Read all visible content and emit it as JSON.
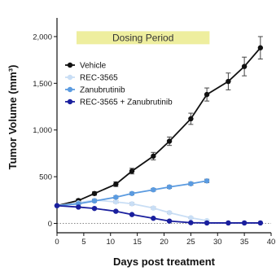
{
  "chart_data": {
    "type": "line",
    "xlabel": "Days post treatment",
    "ylabel": "Tumor Volume (mm³)",
    "xlim": [
      0,
      40
    ],
    "ylim": [
      -100,
      2200
    ],
    "x_ticks": [
      0,
      5,
      10,
      15,
      20,
      25,
      30,
      35,
      40
    ],
    "y_ticks": [
      0,
      500,
      1000,
      1500,
      2000
    ],
    "y_tick_labels": [
      "0",
      "500",
      "1,000",
      "1,500",
      "2,000"
    ],
    "annotation": "Dosing Period",
    "dosing_period": [
      0,
      28.5
    ],
    "baseline_dotted_at": 0,
    "legend_position": "top-left",
    "series": [
      {
        "name": "Vehicle",
        "color": "#111111",
        "x": [
          0,
          4,
          7,
          11,
          14,
          18,
          21,
          25,
          28,
          32,
          35,
          38
        ],
        "y": [
          190,
          245,
          320,
          420,
          560,
          720,
          880,
          1120,
          1380,
          1520,
          1680,
          1880
        ],
        "err": [
          0,
          15,
          18,
          25,
          30,
          40,
          45,
          60,
          70,
          90,
          100,
          120
        ]
      },
      {
        "name": "REC-3565",
        "color": "#c9def5",
        "x": [
          0,
          4,
          7,
          11,
          14,
          18,
          21,
          25,
          28
        ],
        "y": [
          190,
          220,
          250,
          230,
          210,
          165,
          115,
          60,
          30
        ],
        "err": [
          0,
          10,
          12,
          12,
          12,
          12,
          10,
          8,
          6
        ]
      },
      {
        "name": "Zanubrutinib",
        "color": "#5b9be0",
        "x": [
          0,
          4,
          7,
          11,
          14,
          18,
          21,
          25,
          28
        ],
        "y": [
          190,
          210,
          240,
          280,
          320,
          360,
          390,
          425,
          455
        ],
        "err": [
          0,
          10,
          12,
          14,
          14,
          15,
          15,
          16,
          18
        ]
      },
      {
        "name": "REC-3565 + Zanubrutinib",
        "color": "#1a1f9e",
        "x": [
          0,
          4,
          7,
          11,
          14,
          18,
          21,
          25,
          28,
          32,
          35,
          38
        ],
        "y": [
          190,
          175,
          160,
          130,
          95,
          55,
          25,
          8,
          5,
          5,
          5,
          5
        ],
        "err": [
          0,
          8,
          8,
          8,
          8,
          6,
          5,
          4,
          3,
          3,
          3,
          3
        ]
      }
    ]
  }
}
